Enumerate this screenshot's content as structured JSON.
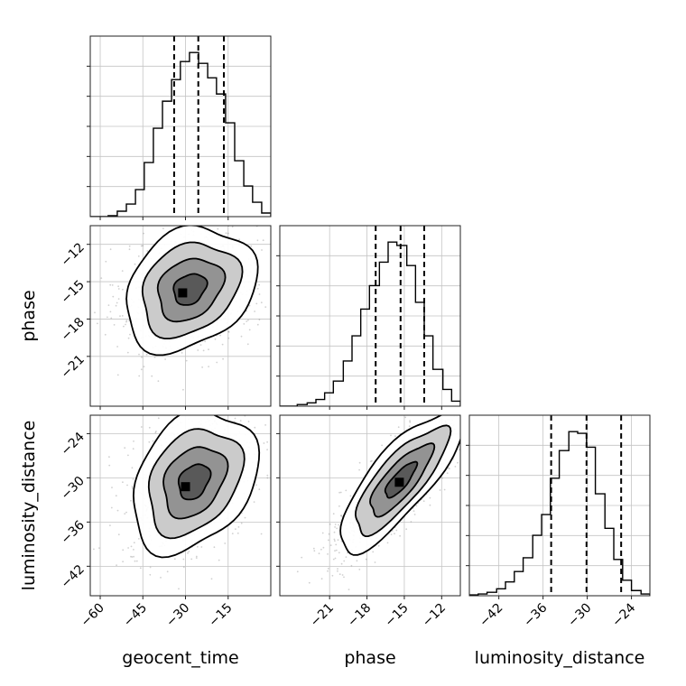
{
  "chart_data": {
    "type": "corner",
    "parameters": [
      "geocent_time",
      "phase",
      "luminosity_distance"
    ],
    "ranges": {
      "geocent_time": [
        -63.5,
        0
      ],
      "phase": [
        -25,
        -10.5
      ],
      "luminosity_distance": [
        -46,
        -21.5
      ]
    },
    "ticks": {
      "geocent_time": [
        -60,
        -45,
        -30,
        -15
      ],
      "phase": [
        -21,
        -18,
        -15,
        -12
      ],
      "luminosity_distance": [
        -42,
        -36,
        -30,
        -24
      ]
    },
    "tick_labels": {
      "geocent_time": [
        "−60",
        "−45",
        "−30",
        "−15"
      ],
      "phase": [
        "−21",
        "−18",
        "−15",
        "−12"
      ],
      "luminosity_distance": [
        "−42",
        "−36",
        "−30",
        "−24"
      ]
    },
    "axis_labels": {
      "geocent_time": "geocent_time",
      "phase": "phase",
      "luminosity_distance": "luminosity_distance"
    },
    "quantiles": {
      "geocent_time": [
        -34,
        -25.5,
        -16.5
      ],
      "phase": [
        -17.3,
        -15.3,
        -13.4
      ],
      "luminosity_distance": [
        -34.9,
        -30.1,
        -25.4
      ]
    },
    "histograms": {
      "geocent_time": {
        "edges": [
          -63.5,
          -60.3,
          -57.2,
          -54,
          -50.8,
          -47.6,
          -44.5,
          -41.3,
          -38.1,
          -34.9,
          -31.8,
          -28.6,
          -25.4,
          -22.2,
          -19.1,
          -15.9,
          -12.7,
          -9.5,
          -6.4,
          -3.2,
          0
        ],
        "counts": [
          0,
          0,
          0.5,
          3,
          7,
          15,
          30,
          49,
          64,
          76,
          86,
          91,
          85,
          77,
          68,
          52,
          31,
          17,
          8,
          2
        ]
      },
      "phase": {
        "edges": [
          -25,
          -24.3,
          -23.6,
          -22.8,
          -22.1,
          -21.4,
          -20.7,
          -19.9,
          -19.2,
          -18.5,
          -17.8,
          -17,
          -16.3,
          -15.6,
          -14.8,
          -14.1,
          -13.4,
          -12.7,
          -11.9,
          -11.2,
          -10.5
        ],
        "counts": [
          0,
          0,
          1,
          2,
          4,
          8,
          15,
          27,
          42,
          58,
          72,
          86,
          98,
          96,
          84,
          62,
          42,
          22,
          10,
          3
        ]
      },
      "luminosity_distance": {
        "edges": [
          -46,
          -44.8,
          -43.6,
          -42.3,
          -41.1,
          -39.9,
          -38.7,
          -37.4,
          -36.2,
          -35,
          -33.8,
          -32.5,
          -31.3,
          -30.1,
          -28.9,
          -27.6,
          -26.4,
          -25.2,
          -24,
          -22.7,
          -21.5
        ],
        "counts": [
          0.5,
          1,
          2,
          4,
          8,
          14,
          22,
          35,
          47,
          68,
          84,
          95,
          94,
          86,
          59,
          39,
          21,
          9,
          3,
          1
        ]
      }
    },
    "pairs": [
      {
        "x": "geocent_time",
        "y": "phase",
        "mean": [
          -28.5,
          -15.6
        ],
        "sd": [
          11.5,
          2.5
        ],
        "corr": 0.25,
        "peak": [
          -31,
          -15.9
        ],
        "scatter_n": 1100
      },
      {
        "x": "geocent_time",
        "y": "luminosity_distance",
        "mean": [
          -27,
          -30.5
        ],
        "sd": [
          11,
          4.8
        ],
        "corr": 0.3,
        "peak": [
          -30,
          -31.2
        ],
        "scatter_n": 1100
      },
      {
        "x": "phase",
        "y": "luminosity_distance",
        "mean": [
          -15.3,
          -30.3
        ],
        "sd": [
          2.5,
          4.8
        ],
        "corr": 0.8,
        "peak": [
          -15.4,
          -30.6
        ],
        "scatter_n": 1100
      }
    ],
    "contour_levels_sigma": [
      0.5,
      1,
      1.5,
      2
    ],
    "grid": true
  }
}
